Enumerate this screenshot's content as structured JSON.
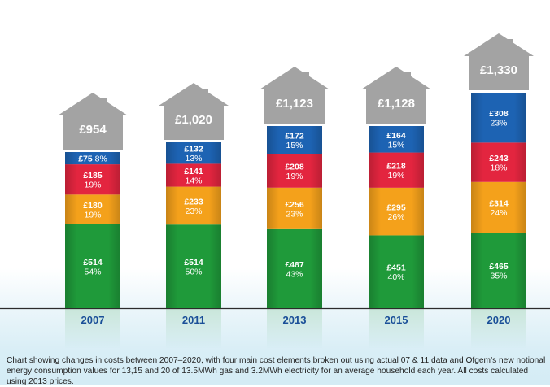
{
  "chart_data": {
    "type": "bar",
    "stacked": true,
    "categories": [
      "2007",
      "2011",
      "2013",
      "2015",
      "2020"
    ],
    "totals": [
      "£954",
      "£1,020",
      "£1,123",
      "£1,128",
      "£1,330"
    ],
    "series": [
      {
        "color": "#1f9a3a",
        "values": [
          514,
          514,
          487,
          451,
          465
        ],
        "value_labels": [
          "£514",
          "£514",
          "£487",
          "£451",
          "£465"
        ],
        "percent_labels": [
          "54%",
          "50%",
          "43%",
          "40%",
          "35%"
        ]
      },
      {
        "color": "#f4a11b",
        "values": [
          180,
          233,
          256,
          295,
          314
        ],
        "value_labels": [
          "£180",
          "£233",
          "£256",
          "£295",
          "£314"
        ],
        "percent_labels": [
          "19%",
          "23%",
          "23%",
          "26%",
          "24%"
        ]
      },
      {
        "color": "#e3253f",
        "values": [
          185,
          141,
          208,
          218,
          243
        ],
        "value_labels": [
          "£185",
          "£141",
          "£208",
          "£218",
          "£243"
        ],
        "percent_labels": [
          "19%",
          "14%",
          "19%",
          "19%",
          "18%"
        ]
      },
      {
        "color": "#1d63b3",
        "values": [
          75,
          132,
          172,
          164,
          308
        ],
        "value_labels": [
          "£75",
          "£132",
          "£172",
          "£164",
          "£308"
        ],
        "percent_labels": [
          "8%",
          "13%",
          "15%",
          "15%",
          "23%"
        ]
      }
    ],
    "house_color": "#a3a3a3",
    "year_color": "#1a4f98",
    "caption": "Chart showing changes in costs between 2007–2020, with four main cost elements broken out using actual 07 & 11 data and Ofgem’s new notional energy consumption values for 13,15 and 20 of 13.5MWh gas and 3.2MWh electricity for an average household each year. All costs calculated using 2013 prices."
  }
}
